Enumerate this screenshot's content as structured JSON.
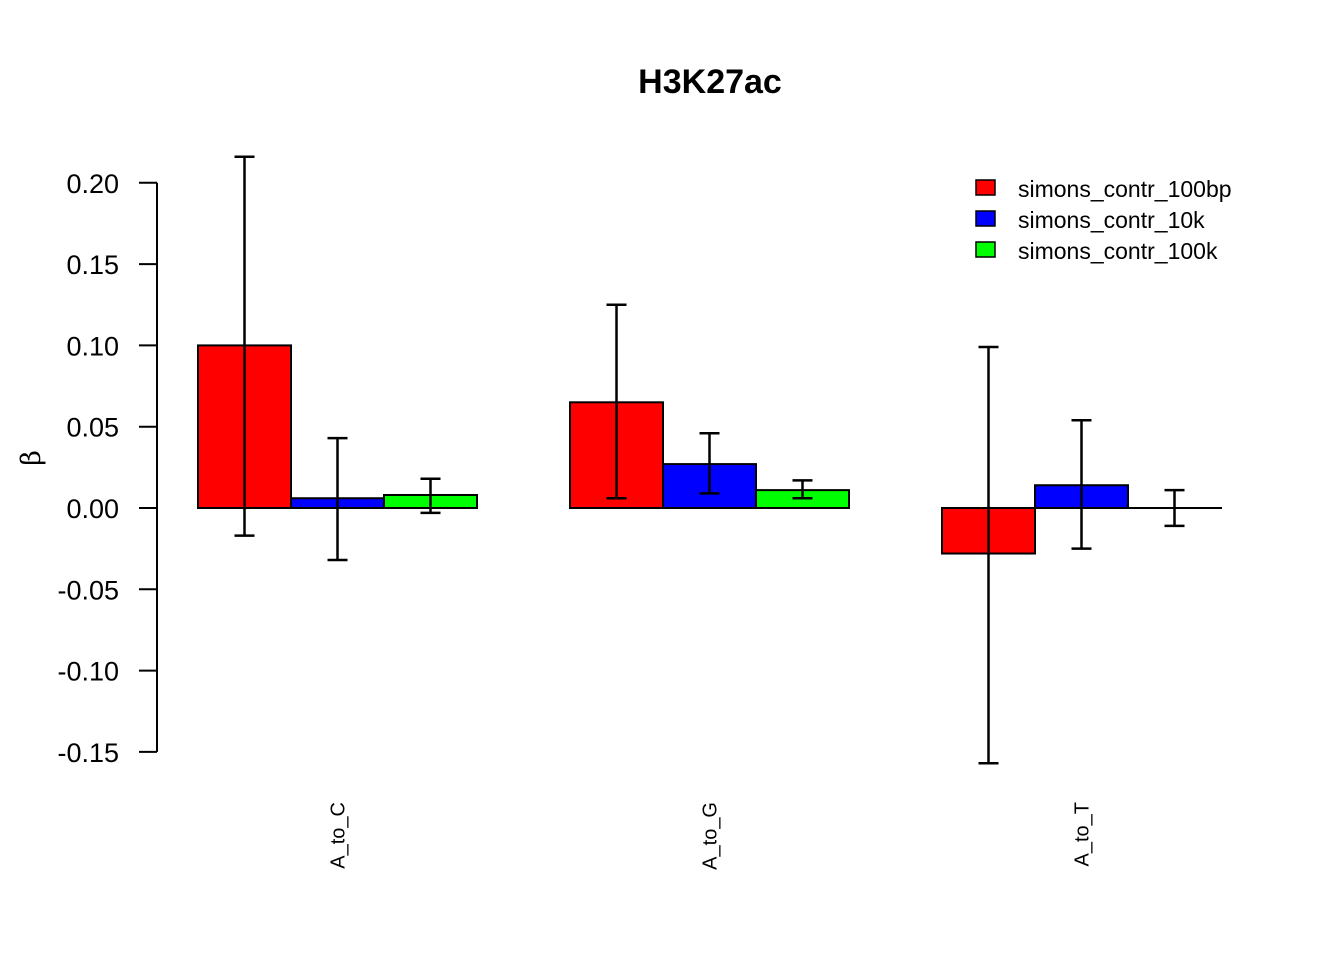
{
  "chart_data": {
    "type": "bar",
    "title": "H3K27ac",
    "ylabel": "β",
    "xlabel": "",
    "categories": [
      "A_to_C",
      "A_to_G",
      "A_to_T"
    ],
    "yticks": [
      0.2,
      0.15,
      0.1,
      0.05,
      0.0,
      -0.05,
      -0.1,
      -0.15
    ],
    "ylim": [
      -0.15,
      0.2
    ],
    "legend_position": "top-right",
    "series": [
      {
        "name": "simons_contr_100bp",
        "color": "#ff0000",
        "values": [
          0.1,
          0.065,
          -0.028
        ],
        "err_low": [
          -0.017,
          0.006,
          -0.157
        ],
        "err_high": [
          0.216,
          0.125,
          0.099
        ]
      },
      {
        "name": "simons_contr_10k",
        "color": "#0000ff",
        "values": [
          0.006,
          0.027,
          0.014
        ],
        "err_low": [
          -0.032,
          0.009,
          -0.025
        ],
        "err_high": [
          0.043,
          0.046,
          0.054
        ]
      },
      {
        "name": "simons_contr_100k",
        "color": "#00ff00",
        "values": [
          0.008,
          0.011,
          0.0
        ],
        "err_low": [
          -0.003,
          0.006,
          -0.011
        ],
        "err_high": [
          0.018,
          0.017,
          0.011
        ]
      }
    ],
    "grid": false
  }
}
